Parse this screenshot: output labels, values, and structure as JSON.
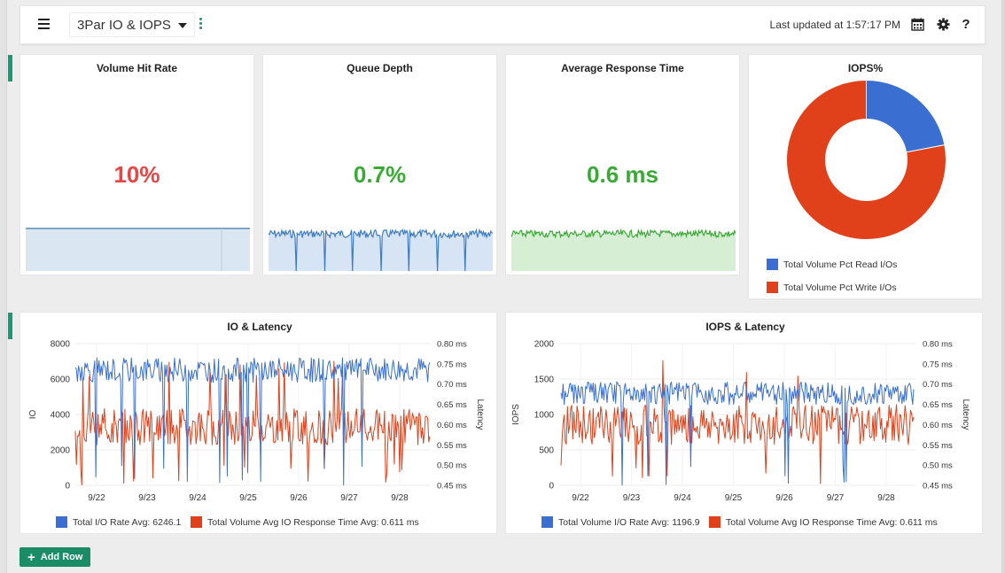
{
  "header": {
    "title": "3Par IO & IOPS",
    "last_updated": "Last updated at 1:57:17 PM",
    "help_label": "?"
  },
  "kpis": [
    {
      "title": "Volume Hit Rate",
      "value": "10%",
      "color": "#e84545"
    },
    {
      "title": "Queue Depth",
      "value": "0.7%",
      "color": "#3aaa35"
    },
    {
      "title": "Average Response Time",
      "value": "0.6 ms",
      "color": "#3aaa35"
    }
  ],
  "donut": {
    "title": "IOPS%",
    "legend": [
      {
        "label": "Total Volume Pct Read I/Os",
        "color": "#3a6fd1"
      },
      {
        "label": "Total Volume Pct Write I/Os",
        "color": "#e0401a"
      }
    ]
  },
  "charts_text": {
    "io_latency": {
      "legend": [
        {
          "label": "Total I/O Rate  Avg: 6246.1",
          "color": "#3a6fd1"
        },
        {
          "label": "Total Volume Avg IO Response Time  Avg: 0.611 ms",
          "color": "#e0401a"
        }
      ]
    },
    "iops_latency": {
      "legend": [
        {
          "label": "Total Volume I/O Rate  Avg: 1196.9",
          "color": "#3a6fd1"
        },
        {
          "label": "Total Volume Avg IO Response Time  Avg: 0.611 ms",
          "color": "#e0401a"
        }
      ]
    }
  },
  "footer": {
    "add_row_label": "Add Row"
  },
  "chart_data": [
    {
      "type": "pie",
      "title": "IOPS%",
      "categories": [
        "Total Volume Pct Read I/Os",
        "Total Volume Pct Write I/Os"
      ],
      "values": [
        22,
        78
      ],
      "colors": [
        "#3a6fd1",
        "#e0401a"
      ],
      "legend": "bottom"
    },
    {
      "type": "line",
      "title": "IO & Latency",
      "xlabel": "",
      "ylabel": "IO",
      "y2label": "Latency",
      "x_ticks": [
        "9/22",
        "9/23",
        "9/24",
        "9/25",
        "9/26",
        "9/27",
        "9/28"
      ],
      "yticks": [
        "8000",
        "6000",
        "4000",
        "2000",
        "0"
      ],
      "ylim": [
        0,
        8000
      ],
      "y2ticks": [
        "0.80 ms",
        "0.75 ms",
        "0.70 ms",
        "0.65 ms",
        "0.60 ms",
        "0.55 ms",
        "0.50 ms",
        "0.45 ms"
      ],
      "y2lim": [
        0.45,
        0.8
      ],
      "series": [
        {
          "name": "Total I/O Rate",
          "axis": "left",
          "avg": 6246.1,
          "color": "#3a6fd1",
          "mean": 6500,
          "spread": 700,
          "dips": 8
        },
        {
          "name": "Total Volume Avg IO Response Time",
          "axis": "right",
          "avg": 0.611,
          "color": "#e0401a",
          "mean": 0.595,
          "spread": 0.045,
          "dips": 14
        }
      ],
      "legend": "bottom"
    },
    {
      "type": "line",
      "title": "IOPS & Latency",
      "xlabel": "",
      "ylabel": "IOPS",
      "y2label": "Latency",
      "x_ticks": [
        "9/22",
        "9/23",
        "9/24",
        "9/25",
        "9/26",
        "9/27",
        "9/28"
      ],
      "yticks": [
        "2000",
        "1500",
        "1000",
        "500",
        "0"
      ],
      "ylim": [
        0,
        2000
      ],
      "y2ticks": [
        "0.80 ms",
        "0.75 ms",
        "0.70 ms",
        "0.65 ms",
        "0.60 ms",
        "0.55 ms",
        "0.50 ms",
        "0.45 ms"
      ],
      "y2lim": [
        0.45,
        0.8
      ],
      "series": [
        {
          "name": "Total Volume I/O Rate",
          "axis": "left",
          "avg": 1196.9,
          "color": "#3a6fd1",
          "mean": 1300,
          "spread": 160,
          "dips": 8
        },
        {
          "name": "Total Volume Avg IO Response Time",
          "axis": "right",
          "avg": 0.611,
          "color": "#e0401a",
          "mean": 0.6,
          "spread": 0.05,
          "dips": 10
        }
      ],
      "legend": "bottom"
    }
  ]
}
